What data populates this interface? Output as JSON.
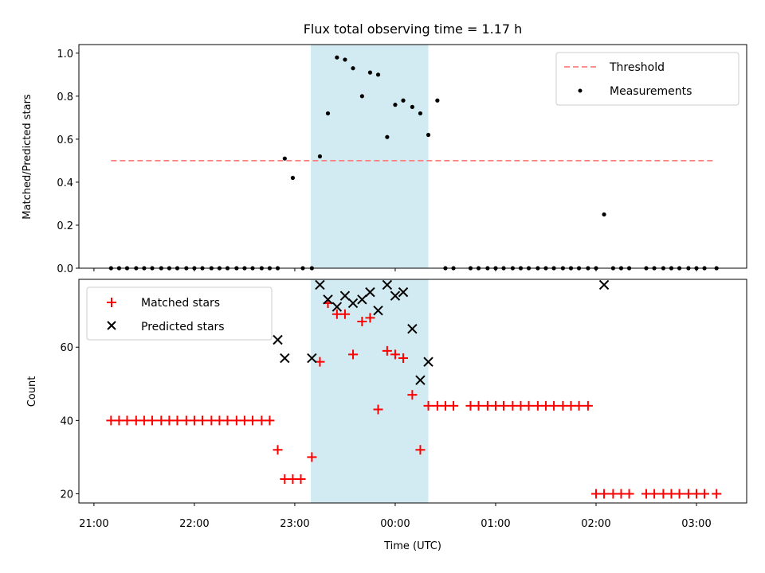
{
  "chart_data": {
    "title": "Flux total observing time = 1.17 h",
    "xlabel": "Time (UTC)",
    "x_unit": "hours UTC (values beyond 24 are the next day)",
    "xlim": [
      20.85,
      27.5
    ],
    "x_ticks": [
      {
        "value": 21,
        "label": "21:00"
      },
      {
        "value": 22,
        "label": "22:00"
      },
      {
        "value": 23,
        "label": "23:00"
      },
      {
        "value": 24,
        "label": "00:00"
      },
      {
        "value": 25,
        "label": "01:00"
      },
      {
        "value": 26,
        "label": "02:00"
      },
      {
        "value": 27,
        "label": "03:00"
      }
    ],
    "highlight_span": {
      "x": [
        23.16,
        24.33
      ],
      "color": "#add8e6"
    },
    "panels": [
      {
        "type": "scatter",
        "ylabel": "Matched/Predicted stars",
        "ylim": [
          0,
          1.04
        ],
        "y_ticks": [
          "0.0",
          "0.2",
          "0.4",
          "0.6",
          "0.8",
          "1.0"
        ],
        "legend": {
          "location": "upper right"
        },
        "threshold": {
          "name": "Threshold",
          "value": 0.5,
          "x": [
            21.17,
            27.17
          ],
          "color": "#ff7f7f",
          "style": "dashed"
        },
        "series": [
          {
            "name": "Measurements",
            "color": "#000000",
            "marker": "dot",
            "x": [
              21.17,
              21.25,
              21.33,
              21.42,
              21.5,
              21.58,
              21.67,
              21.75,
              21.83,
              21.92,
              22.0,
              22.08,
              22.17,
              22.25,
              22.33,
              22.42,
              22.5,
              22.58,
              22.67,
              22.75,
              22.83,
              22.9,
              22.98,
              23.08,
              23.17,
              23.25,
              23.33,
              23.42,
              23.5,
              23.58,
              23.67,
              23.75,
              23.83,
              23.92,
              24.0,
              24.08,
              24.17,
              24.25,
              24.33,
              24.42,
              24.5,
              24.58,
              24.75,
              24.83,
              24.92,
              25.0,
              25.08,
              25.17,
              25.25,
              25.33,
              25.42,
              25.5,
              25.58,
              25.67,
              25.75,
              25.83,
              25.92,
              26.0,
              26.08,
              26.17,
              26.25,
              26.33,
              26.5,
              26.58,
              26.67,
              26.75,
              26.83,
              26.92,
              27.0,
              27.08,
              27.2
            ],
            "y": [
              0,
              0,
              0,
              0,
              0,
              0,
              0,
              0,
              0,
              0,
              0,
              0,
              0,
              0,
              0,
              0,
              0,
              0,
              0,
              0,
              0,
              0.51,
              0.42,
              0,
              0,
              0.52,
              0.72,
              0.98,
              0.97,
              0.93,
              0.8,
              0.91,
              0.9,
              0.61,
              0.76,
              0.78,
              0.75,
              0.72,
              0.62,
              0.78,
              0,
              0,
              0,
              0,
              0,
              0,
              0,
              0,
              0,
              0,
              0,
              0,
              0,
              0,
              0,
              0,
              0,
              0,
              0.25,
              0,
              0,
              0,
              0,
              0,
              0,
              0,
              0,
              0,
              0,
              0,
              0
            ]
          }
        ]
      },
      {
        "type": "scatter",
        "ylabel": "Count",
        "ylim": [
          17.5,
          78.5
        ],
        "y_ticks": [
          "20",
          "40",
          "60"
        ],
        "legend": {
          "location": "upper left"
        },
        "series": [
          {
            "name": "Matched stars",
            "color": "#ff0000",
            "marker": "plus",
            "x": [
              21.17,
              21.25,
              21.33,
              21.42,
              21.5,
              21.58,
              21.67,
              21.75,
              21.83,
              21.92,
              22.0,
              22.08,
              22.17,
              22.25,
              22.33,
              22.42,
              22.5,
              22.58,
              22.67,
              22.75,
              22.83,
              22.9,
              22.98,
              23.06,
              23.17,
              23.25,
              23.33,
              23.42,
              23.5,
              23.58,
              23.67,
              23.75,
              23.83,
              23.92,
              24.0,
              24.08,
              24.17,
              24.25,
              24.33,
              24.42,
              24.5,
              24.58,
              24.75,
              24.83,
              24.92,
              25.0,
              25.08,
              25.17,
              25.25,
              25.33,
              25.42,
              25.5,
              25.58,
              25.67,
              25.75,
              25.83,
              25.92,
              26.0,
              26.08,
              26.17,
              26.25,
              26.33,
              26.5,
              26.58,
              26.67,
              26.75,
              26.83,
              26.92,
              27.0,
              27.08,
              27.2
            ],
            "y": [
              40,
              40,
              40,
              40,
              40,
              40,
              40,
              40,
              40,
              40,
              40,
              40,
              40,
              40,
              40,
              40,
              40,
              40,
              40,
              40,
              32,
              24,
              24,
              24,
              30,
              56,
              72,
              69,
              69,
              58,
              67,
              68,
              43,
              59,
              58,
              57,
              47,
              32,
              44,
              44,
              44,
              44,
              44,
              44,
              44,
              44,
              44,
              44,
              44,
              44,
              44,
              44,
              44,
              44,
              44,
              44,
              44,
              20,
              20,
              20,
              20,
              20,
              20,
              20,
              20,
              20,
              20,
              20,
              20,
              20,
              20
            ]
          },
          {
            "name": "Predicted stars",
            "color": "#000000",
            "marker": "x",
            "x": [
              22.83,
              22.9,
              23.17,
              23.25,
              23.33,
              23.42,
              23.5,
              23.58,
              23.67,
              23.75,
              23.83,
              23.92,
              24.0,
              24.08,
              24.17,
              24.25,
              24.33,
              26.08
            ],
            "y": [
              62,
              57,
              57,
              77,
              73,
              71,
              74,
              72,
              73,
              75,
              70,
              77,
              74,
              75,
              65,
              51,
              56,
              77
            ]
          }
        ]
      }
    ]
  }
}
